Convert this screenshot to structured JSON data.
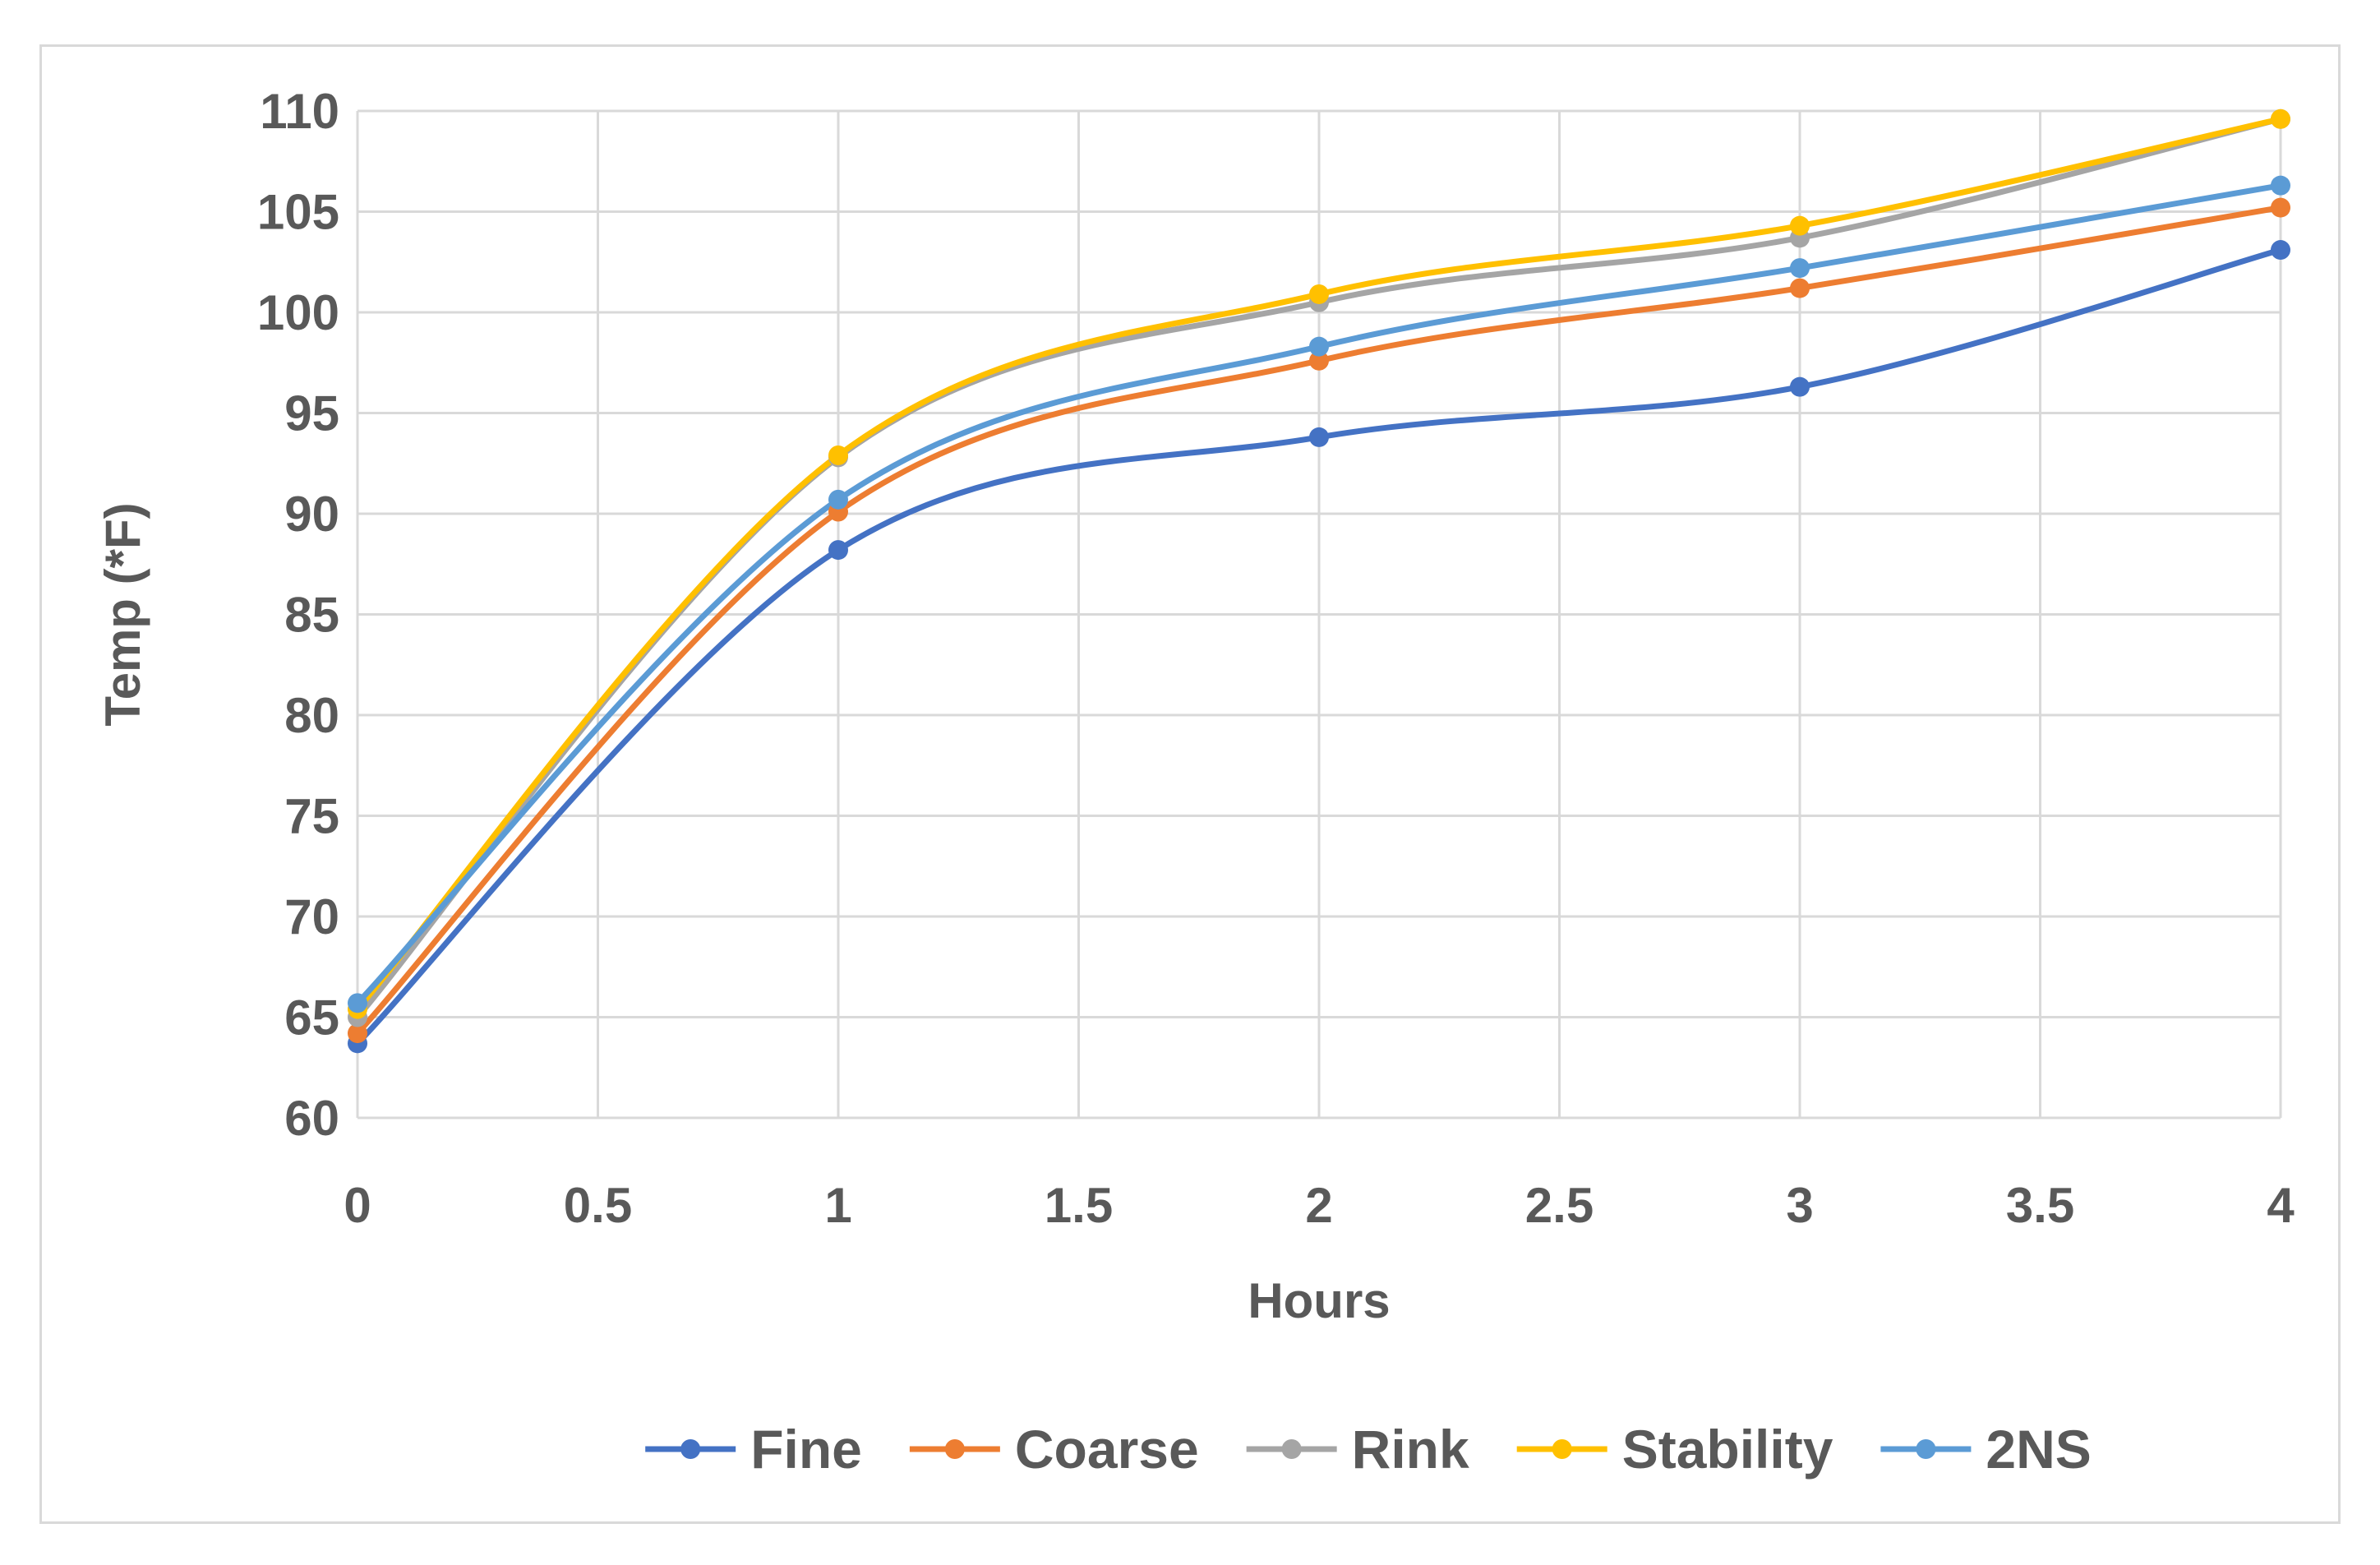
{
  "chart_data": {
    "type": "line",
    "title": "",
    "xlabel": "Hours",
    "ylabel": "Temp (*F)",
    "xlim": [
      0,
      4
    ],
    "ylim": [
      60,
      110
    ],
    "x_ticks": [
      "0",
      "0.5",
      "1",
      "1.5",
      "2",
      "2.5",
      "3",
      "3.5",
      "4"
    ],
    "y_ticks": [
      "60",
      "65",
      "70",
      "75",
      "80",
      "85",
      "90",
      "95",
      "100",
      "105",
      "110"
    ],
    "grid": true,
    "smooth": true,
    "legend_position": "bottom",
    "x": [
      0,
      1,
      2,
      3,
      4
    ],
    "series": [
      {
        "name": "Fine",
        "color": "#4472C4",
        "values": [
          63.7,
          88.2,
          93.8,
          96.3,
          103.1
        ]
      },
      {
        "name": "Coarse",
        "color": "#ED7D31",
        "values": [
          64.2,
          90.1,
          97.6,
          101.2,
          105.2
        ]
      },
      {
        "name": "Rink",
        "color": "#A5A5A5",
        "values": [
          65.0,
          92.8,
          100.5,
          103.7,
          109.6
        ]
      },
      {
        "name": "Stability",
        "color": "#FFC000",
        "values": [
          65.4,
          92.9,
          100.9,
          104.3,
          109.6
        ]
      },
      {
        "name": "2NS",
        "color": "#5B9BD5",
        "values": [
          65.7,
          90.7,
          98.3,
          102.2,
          106.3
        ]
      }
    ]
  }
}
